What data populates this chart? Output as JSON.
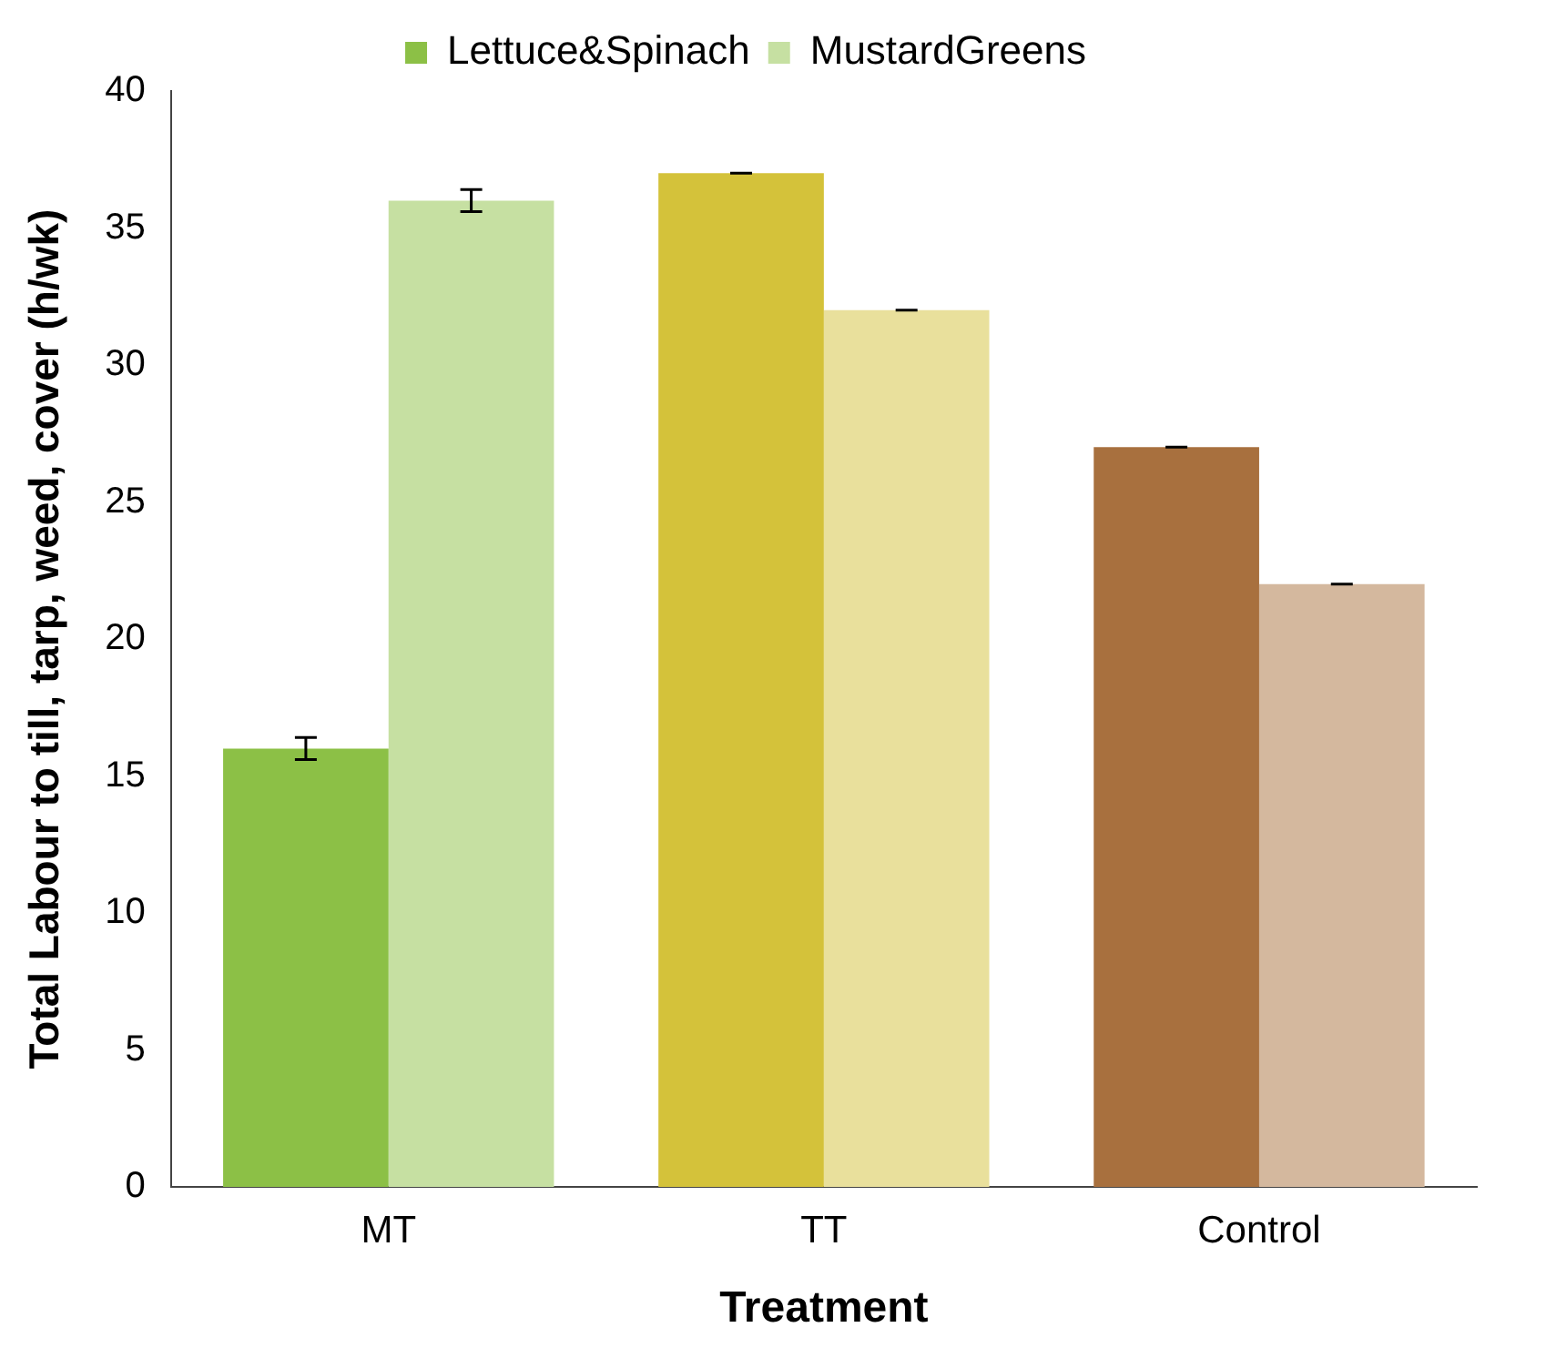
{
  "chart_data": {
    "type": "bar",
    "xlabel": "Treatment",
    "ylabel": "Total Labour to till, tarp, weed, cover (h/wk)",
    "categories": [
      "MT",
      "TT",
      "Control"
    ],
    "series": [
      {
        "name": "Lettuce&Spinach",
        "colors": [
          "#8cc046",
          "#d4c23a",
          "#a8703e"
        ],
        "values": [
          16,
          37,
          27
        ],
        "errors": [
          0.4,
          0,
          0
        ]
      },
      {
        "name": "MustardGreens",
        "colors": [
          "#c6e0a2",
          "#e9e09c",
          "#d4b89e"
        ],
        "values": [
          36,
          32,
          22
        ],
        "errors": [
          0.4,
          0,
          0
        ]
      }
    ],
    "ylim": [
      0,
      40
    ],
    "yticks": [
      0,
      5,
      10,
      15,
      20,
      25,
      30,
      35,
      40
    ],
    "grid": false,
    "legend": "top"
  }
}
